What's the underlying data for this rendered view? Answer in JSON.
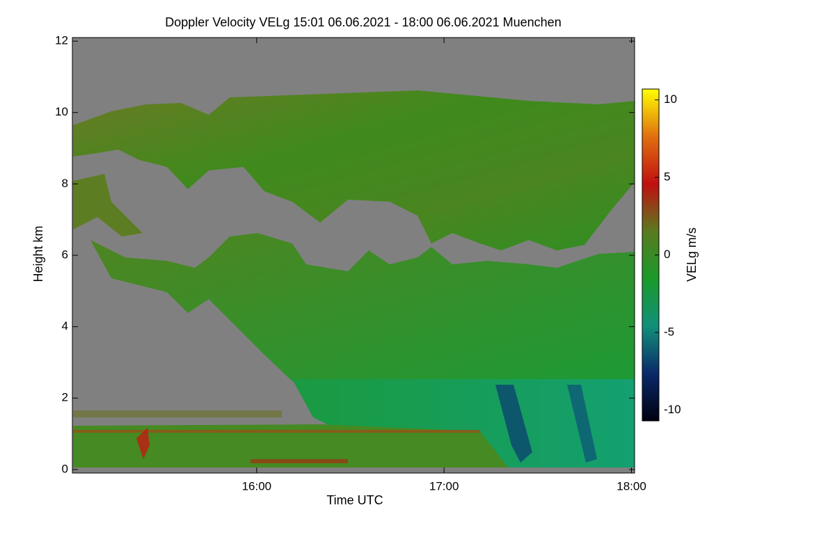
{
  "chart_data": {
    "type": "heatmap",
    "title": "Doppler Velocity VELg   15:01 06.06.2021 - 18:00 06.06.2021 Muenchen",
    "x_label": "Time UTC",
    "y_label": "Height km",
    "xlim": [
      901,
      1081
    ],
    "xticks": [
      {
        "value": 960,
        "label": "16:00"
      },
      {
        "value": 1020,
        "label": "17:00"
      },
      {
        "value": 1080,
        "label": "18:00"
      }
    ],
    "ylim": [
      -0.1,
      12.1
    ],
    "yticks": [
      0,
      2,
      4,
      6,
      8,
      10,
      12
    ],
    "colorbar": {
      "label": "VELg m/s",
      "lim": [
        -10.7,
        10.7
      ],
      "ticks": [
        -10,
        -5,
        0,
        5,
        10
      ],
      "colormap": [
        "#000010",
        "#0a2a6a",
        "#11907a",
        "#1a9a2a",
        "#5a7a20",
        "#c01010",
        "#e07010",
        "#ffff00"
      ]
    }
  }
}
